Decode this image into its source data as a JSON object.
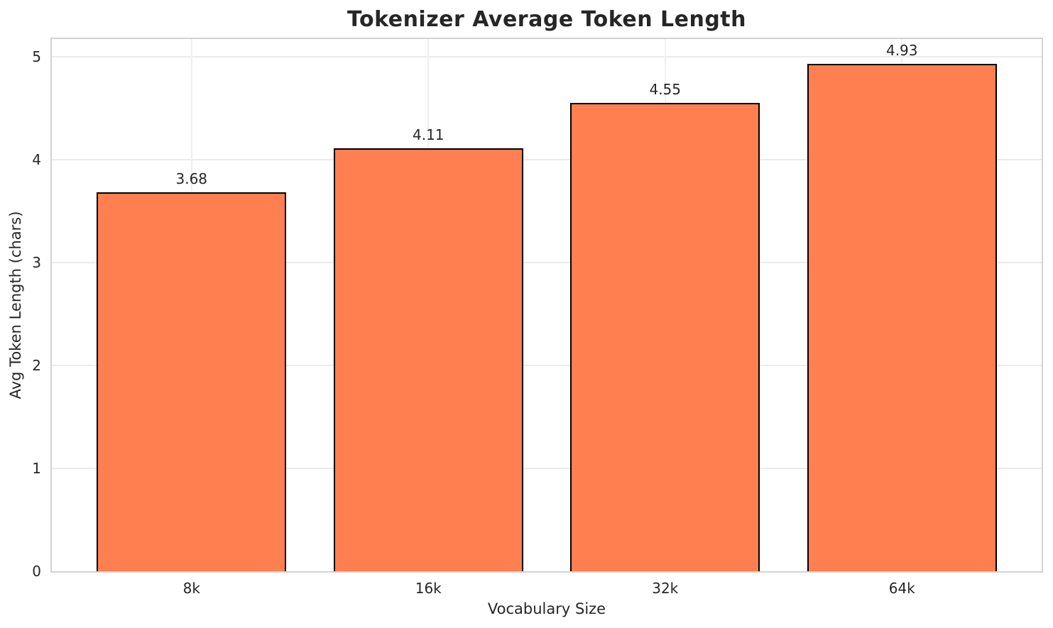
{
  "figure": {
    "background_color": "#ffffff",
    "text_color": "#262626"
  },
  "chart_data": {
    "type": "bar",
    "title": "Tokenizer Average Token Length",
    "xlabel": "Vocabulary Size",
    "ylabel": "Avg Token Length (chars)",
    "categories": [
      "8k",
      "16k",
      "32k",
      "64k"
    ],
    "values": [
      3.68,
      4.11,
      4.55,
      4.93
    ],
    "value_labels": [
      "3.68",
      "4.11",
      "4.55",
      "4.93"
    ],
    "yticks": [
      0,
      1,
      2,
      3,
      4,
      5
    ],
    "ytick_labels": [
      "0",
      "1",
      "2",
      "3",
      "4",
      "5"
    ],
    "ylim": [
      0,
      5.17
    ],
    "xlim": [
      -0.59,
      3.59
    ],
    "bar_width_units": 0.8,
    "grid": true,
    "grid_axes": "both",
    "legend": "none",
    "bar_color": "#FF7F50",
    "bar_edge_color": "#000000",
    "grid_color": "#ebebeb",
    "spine_color": "#d3d3d3"
  }
}
